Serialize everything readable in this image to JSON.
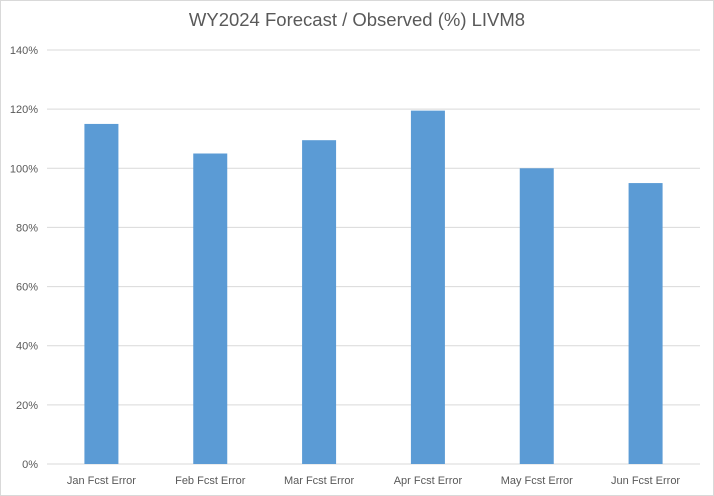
{
  "chart_data": {
    "type": "bar",
    "title": "WY2024 Forecast / Observed (%) LIVM8",
    "xlabel": "",
    "ylabel": "",
    "categories": [
      "Jan Fcst Error",
      "Feb Fcst Error",
      "Mar Fcst Error",
      "Apr Fcst Error",
      "May Fcst Error",
      "Jun Fcst Error"
    ],
    "values": [
      115,
      105,
      109.5,
      119.5,
      100,
      95
    ],
    "ylim": [
      0,
      140
    ],
    "yticks": [
      0,
      20,
      40,
      60,
      80,
      100,
      120,
      140
    ],
    "ytick_labels": [
      "0%",
      "20%",
      "40%",
      "60%",
      "80%",
      "100%",
      "120%",
      "140%"
    ],
    "grid": true,
    "legend": "none",
    "colors": {
      "bar": "#5b9bd5",
      "grid": "#d9d9d9",
      "text": "#595959"
    }
  }
}
